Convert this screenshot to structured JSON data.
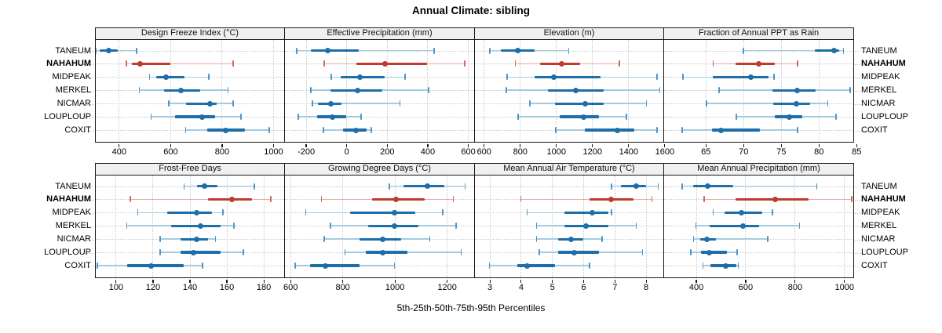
{
  "title": "Annual Climate: sibling",
  "caption": "5th-25th-50th-75th-95th Percentiles",
  "percentile_labels": [
    "5th",
    "25th",
    "50th",
    "75th",
    "95th"
  ],
  "sites": [
    {
      "name": "TANEUM",
      "highlight": false
    },
    {
      "name": "NAHAHUM",
      "highlight": true
    },
    {
      "name": "MIDPEAK",
      "highlight": false
    },
    {
      "name": "MERKEL",
      "highlight": false
    },
    {
      "name": "NICMAR",
      "highlight": false
    },
    {
      "name": "LOUPLOUP",
      "highlight": false
    },
    {
      "name": "COXIT",
      "highlight": false
    }
  ],
  "colors": {
    "blue_main": "#1d6ea9",
    "blue_band": "#a5cbe2",
    "blue_cap": "#4f96c4",
    "red_main": "#c03a2e",
    "red_band": "#e4aba3",
    "red_cap": "#cc6a5c",
    "strip_bg": "#f0f0f0",
    "border": "#1a1a1a",
    "grid": "#c9c9c9"
  },
  "chart_data": {
    "type": "scatter",
    "subtype": "percentile-dot-interval",
    "legend_position": "none",
    "grid": true,
    "note": "values per site are [p5, p25, p50, p75, p95]; dot = median, thick bar = p25-p75, thin line with end caps = p5-p95",
    "panels": [
      {
        "row": 0,
        "col": 0,
        "title": "Design Freeze Index (°C)",
        "domain": [
          309,
          1041
        ],
        "ticks": [
          400,
          600,
          800,
          1000
        ],
        "series": [
          {
            "site": "TANEUM",
            "values": [
              310,
              325,
              360,
              395,
              470
            ]
          },
          {
            "site": "NAHAHUM",
            "values": [
              430,
              450,
              482,
              600,
              845
            ]
          },
          {
            "site": "MIDPEAK",
            "values": [
              520,
              545,
              585,
              655,
              750
            ]
          },
          {
            "site": "MERKEL",
            "values": [
              480,
              575,
              640,
              715,
              825
            ]
          },
          {
            "site": "NICMAR",
            "values": [
              595,
              660,
              755,
              780,
              845
            ]
          },
          {
            "site": "LOUPLOUP",
            "values": [
              525,
              620,
              725,
              775,
              875
            ]
          },
          {
            "site": "COXIT",
            "values": [
              660,
              745,
              815,
              890,
              985
            ]
          }
        ]
      },
      {
        "row": 0,
        "col": 1,
        "title": "Effective Precipitation (mm)",
        "domain": [
          -303,
          627
        ],
        "ticks": [
          -200,
          0,
          200,
          400,
          600
        ],
        "series": [
          {
            "site": "TANEUM",
            "values": [
              -245,
              -175,
              -90,
              63,
              433
            ]
          },
          {
            "site": "NAHAHUM",
            "values": [
              -110,
              50,
              190,
              400,
              585
            ]
          },
          {
            "site": "MIDPEAK",
            "values": [
              -75,
              -28,
              67,
              190,
              290
            ]
          },
          {
            "site": "MERKEL",
            "values": [
              -175,
              -80,
              55,
              177,
              405
            ]
          },
          {
            "site": "NICMAR",
            "values": [
              -168,
              -139,
              -78,
              -23,
              265
            ]
          },
          {
            "site": "LOUPLOUP",
            "values": [
              -238,
              -145,
              -68,
              0,
              74
            ]
          },
          {
            "site": "COXIT",
            "values": [
              -114,
              -15,
              46,
              101,
              123
            ]
          }
        ]
      },
      {
        "row": 0,
        "col": 2,
        "title": "Elevation (m)",
        "domain": [
          549,
          1592
        ],
        "ticks": [
          600,
          800,
          1000,
          1200,
          1400,
          1600
        ],
        "series": [
          {
            "site": "TANEUM",
            "values": [
              635,
              695,
              790,
              880,
              1070
            ]
          },
          {
            "site": "NAHAHUM",
            "values": [
              775,
              910,
              1030,
              1135,
              1350
            ]
          },
          {
            "site": "MIDPEAK",
            "values": [
              730,
              880,
              990,
              1245,
              1560
            ]
          },
          {
            "site": "MERKEL",
            "values": [
              725,
              955,
              1110,
              1265,
              1575
            ]
          },
          {
            "site": "NICMAR",
            "values": [
              855,
              995,
              1160,
              1265,
              1500
            ]
          },
          {
            "site": "LOUPLOUP",
            "values": [
              790,
              1020,
              1155,
              1240,
              1390
            ]
          },
          {
            "site": "COXIT",
            "values": [
              1000,
              1160,
              1340,
              1435,
              1560
            ]
          }
        ]
      },
      {
        "row": 0,
        "col": 3,
        "title": "Fraction of Annual PPT as Rain",
        "domain": [
          59.5,
          84.5
        ],
        "ticks": [
          65,
          70,
          75,
          80,
          85
        ],
        "series": [
          {
            "site": "TANEUM",
            "values": [
              70,
              79.5,
              82,
              82.7,
              83.3
            ]
          },
          {
            "site": "NAHAHUM",
            "values": [
              66,
              69,
              72,
              74.2,
              77.2
            ]
          },
          {
            "site": "MIDPEAK",
            "values": [
              62,
              66,
              71,
              73.4,
              74.1
            ]
          },
          {
            "site": "MERKEL",
            "values": [
              66.8,
              73.9,
              77.2,
              79.6,
              84.2
            ]
          },
          {
            "site": "NICMAR",
            "values": [
              65.1,
              74,
              77.1,
              78.9,
              81.2
            ]
          },
          {
            "site": "LOUPLOUP",
            "values": [
              69.1,
              74.2,
              76.1,
              77.8,
              82.3
            ]
          },
          {
            "site": "COXIT",
            "values": [
              61.9,
              65.9,
              67,
              72.2,
              77.2
            ]
          }
        ]
      },
      {
        "row": 1,
        "col": 0,
        "title": "Frost-Free Days",
        "domain": [
          89,
          191
        ],
        "ticks": [
          100,
          120,
          140,
          160,
          180
        ],
        "series": [
          {
            "site": "TANEUM",
            "values": [
              137,
              144,
              148,
              155,
              175
            ]
          },
          {
            "site": "NAHAHUM",
            "values": [
              108,
              150,
              163,
              174,
              184
            ]
          },
          {
            "site": "MIDPEAK",
            "values": [
              112,
              128,
              144,
              152,
              158
            ]
          },
          {
            "site": "MERKEL",
            "values": [
              106,
              130,
              146,
              157,
              164
            ]
          },
          {
            "site": "NICMAR",
            "values": [
              124,
              135,
              144,
              150,
              154
            ]
          },
          {
            "site": "LOUPLOUP",
            "values": [
              124,
              135,
              142,
              157,
              169
            ]
          },
          {
            "site": "COXIT",
            "values": [
              90,
              106,
              119,
              137,
              147
            ]
          }
        ]
      },
      {
        "row": 1,
        "col": 1,
        "title": "Growing Degree Days (°C)",
        "domain": [
          580,
          1302
        ],
        "ticks": [
          600,
          800,
          1000,
          1200
        ],
        "series": [
          {
            "site": "TANEUM",
            "values": [
              980,
              1035,
              1125,
              1190,
              1270
            ]
          },
          {
            "site": "NAHAHUM",
            "values": [
              720,
              915,
              1005,
              1115,
              1225
            ]
          },
          {
            "site": "MIDPEAK",
            "values": [
              660,
              830,
              1000,
              1080,
              1185
            ]
          },
          {
            "site": "MERKEL",
            "values": [
              755,
              900,
              1000,
              1090,
              1235
            ]
          },
          {
            "site": "NICMAR",
            "values": [
              730,
              865,
              955,
              1025,
              1135
            ]
          },
          {
            "site": "LOUPLOUP",
            "values": [
              810,
              890,
              955,
              1050,
              1255
            ]
          },
          {
            "site": "COXIT",
            "values": [
              620,
              675,
              735,
              865,
              1000
            ]
          }
        ]
      },
      {
        "row": 1,
        "col": 2,
        "title": "Mean Annual Air Temperature (°C)",
        "domain": [
          2.52,
          8.55
        ],
        "ticks": [
          3,
          4,
          5,
          6,
          7,
          8
        ],
        "series": [
          {
            "site": "TANEUM",
            "values": [
              6.9,
              7.2,
              7.7,
              8.0,
              8.4
            ]
          },
          {
            "site": "NAHAHUM",
            "values": [
              4.0,
              6.2,
              6.9,
              7.6,
              8.2
            ]
          },
          {
            "site": "MIDPEAK",
            "values": [
              4.2,
              5.4,
              6.3,
              6.8,
              6.9
            ]
          },
          {
            "site": "MERKEL",
            "values": [
              4.5,
              5.4,
              6.1,
              6.8,
              7.7
            ]
          },
          {
            "site": "NICMAR",
            "values": [
              4.5,
              5.2,
              5.6,
              6.0,
              6.6
            ]
          },
          {
            "site": "LOUPLOUP",
            "values": [
              4.6,
              5.2,
              5.7,
              6.5,
              7.9
            ]
          },
          {
            "site": "COXIT",
            "values": [
              3.0,
              3.9,
              4.2,
              5.1,
              6.2
            ]
          }
        ]
      },
      {
        "row": 1,
        "col": 3,
        "title": "Mean Annual Precipitation (mm)",
        "domain": [
          271,
          1034
        ],
        "ticks": [
          400,
          600,
          800,
          1000
        ],
        "series": [
          {
            "site": "TANEUM",
            "values": [
              345,
              390,
              448,
              550,
              890
            ]
          },
          {
            "site": "NAHAHUM",
            "values": [
              433,
              560,
              720,
              855,
              1030
            ]
          },
          {
            "site": "MIDPEAK",
            "values": [
              470,
              515,
              585,
              670,
              710
            ]
          },
          {
            "site": "MERKEL",
            "values": [
              400,
              455,
              590,
              655,
              820
            ]
          },
          {
            "site": "NICMAR",
            "values": [
              390,
              417,
              445,
              480,
              690
            ]
          },
          {
            "site": "LOUPLOUP",
            "values": [
              380,
              422,
              453,
              525,
              567
            ]
          },
          {
            "site": "COXIT",
            "values": [
              428,
              458,
              520,
              565,
              572
            ]
          }
        ]
      }
    ]
  }
}
